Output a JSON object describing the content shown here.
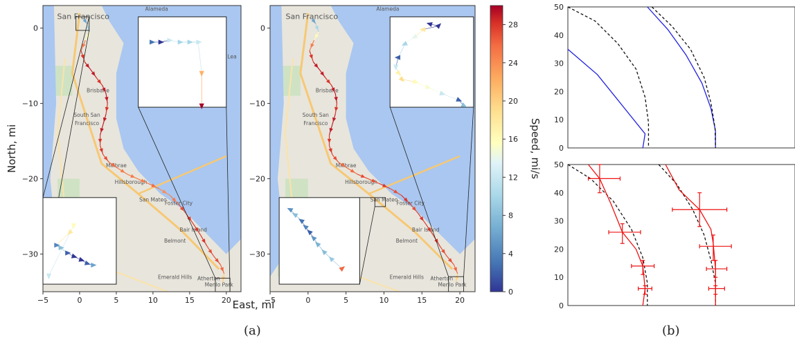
{
  "figure": {
    "caption_a": "(a)",
    "caption_b": "(b)"
  },
  "map_panels": {
    "xlabel": "East, mi",
    "ylabel": "North, mi",
    "xlim": [
      -5,
      22
    ],
    "ylim": [
      -35,
      3
    ],
    "xticks": [
      "−5",
      "0",
      "5",
      "10",
      "15",
      "20"
    ],
    "yticks": [
      "0",
      "−10",
      "−20",
      "−30"
    ],
    "place_labels": [
      {
        "text": "San Francisco",
        "x": 0.5,
        "y": 1.2,
        "big": true
      },
      {
        "text": "Alameda",
        "x": 10.5,
        "y": 2.3
      },
      {
        "text": "Brisbane",
        "x": 2.5,
        "y": -8.5
      },
      {
        "text": "South San",
        "x": 1.0,
        "y": -11.8
      },
      {
        "text": "Francisco",
        "x": 1.0,
        "y": -12.9
      },
      {
        "text": "Millbrae",
        "x": 5.0,
        "y": -18.5
      },
      {
        "text": "Hillsborough",
        "x": 7.0,
        "y": -20.7
      },
      {
        "text": "San Mateo",
        "x": 10.0,
        "y": -23.0
      },
      {
        "text": "Foster City",
        "x": 13.5,
        "y": -23.5
      },
      {
        "text": "Bair Island",
        "x": 15.5,
        "y": -27.0
      },
      {
        "text": "Belmont",
        "x": 13.0,
        "y": -28.5
      },
      {
        "text": "Emerald Hills",
        "x": 13.0,
        "y": -33.3
      },
      {
        "text": "Menlo Park",
        "x": 19.0,
        "y": -34.3
      },
      {
        "text": "Atherton",
        "x": 17.6,
        "y": -33.5
      },
      {
        "text": "San Lea",
        "x": 20.0,
        "y": -4.0
      }
    ],
    "route": [
      [
        0.5,
        1.3
      ],
      [
        1.0,
        0.6
      ],
      [
        1.4,
        -0.5
      ],
      [
        0.8,
        -1.6
      ],
      [
        0.2,
        -3.0
      ],
      [
        0.7,
        -4.5
      ],
      [
        1.5,
        -5.5
      ],
      [
        2.3,
        -6.6
      ],
      [
        3.1,
        -7.6
      ],
      [
        3.6,
        -8.7
      ],
      [
        3.8,
        -10.0
      ],
      [
        3.6,
        -11.4
      ],
      [
        3.2,
        -12.8
      ],
      [
        2.8,
        -14.2
      ],
      [
        2.8,
        -15.6
      ],
      [
        3.2,
        -16.8
      ],
      [
        4.0,
        -17.8
      ],
      [
        5.2,
        -18.6
      ],
      [
        6.5,
        -19.4
      ],
      [
        7.9,
        -20.0
      ],
      [
        9.3,
        -20.6
      ],
      [
        10.8,
        -21.3
      ],
      [
        12.3,
        -22.2
      ],
      [
        13.5,
        -23.4
      ],
      [
        14.5,
        -24.6
      ],
      [
        15.5,
        -26.0
      ],
      [
        16.5,
        -27.5
      ],
      [
        17.4,
        -29.0
      ],
      [
        18.3,
        -30.3
      ],
      [
        19.2,
        -31.4
      ],
      [
        19.7,
        -32.6
      ],
      [
        19.5,
        -33.8
      ]
    ],
    "route_speeds_left": [
      6,
      10,
      16,
      25,
      28,
      29,
      29,
      28,
      29,
      29,
      28,
      29,
      29,
      28,
      28,
      27,
      26,
      25,
      25,
      25,
      26,
      24,
      25,
      27,
      28,
      28,
      28,
      27,
      27,
      26,
      20,
      8
    ],
    "route_speeds_right": [
      6,
      10,
      16,
      25,
      28,
      29,
      29,
      28,
      29,
      29,
      28,
      29,
      29,
      28,
      28,
      27,
      26,
      26,
      27,
      27,
      28,
      27,
      28,
      27,
      28,
      28,
      28,
      27,
      27,
      26,
      20,
      8
    ],
    "left_insets": [
      {
        "box": {
          "x0": -5.0,
          "x1": 5.0,
          "y0": -34.0,
          "y1": -22.5
        },
        "zoom": {
          "x0": -0.5,
          "x1": 1.3,
          "y0": -0.3,
          "y1": 1.5
        },
        "connectors": "zoom-top-right-to-inset-top-left|zoom-bottom-right-to-inset-bottom-left",
        "arrows": [
          {
            "x": 0.15,
            "y": 0.72,
            "dx": 1,
            "dy": 0,
            "speed": 3
          },
          {
            "x": 0.25,
            "y": 0.72,
            "dx": 1,
            "dy": 0,
            "speed": 0
          },
          {
            "x": 0.35,
            "y": 0.74,
            "dx": 1,
            "dy": 0,
            "speed": 12
          },
          {
            "x": 0.47,
            "y": 0.72,
            "dx": 1,
            "dy": 0,
            "speed": 10
          },
          {
            "x": 0.58,
            "y": 0.72,
            "dx": 1,
            "dy": 0,
            "speed": 10
          },
          {
            "x": 0.68,
            "y": 0.72,
            "dx": 1,
            "dy": 0,
            "speed": 12
          },
          {
            "x": 0.72,
            "y": 0.38,
            "dx": 0,
            "dy": -1,
            "speed": 22
          },
          {
            "x": 0.72,
            "y": 0.02,
            "dx": 0,
            "dy": -1,
            "speed": 30
          }
        ]
      },
      {
        "box": {
          "x0": 8.0,
          "x1": 20.0,
          "y0": -10.5,
          "y1": 1.5
        },
        "zoom": {
          "x0": 18.5,
          "x1": 20.5,
          "y0": -35.0,
          "y1": -33.2
        },
        "connectors": "zoom-top-left-to-inset-top-left|zoom-bottom-left-to-inset-bottom-left"
      }
    ],
    "left_inset_bottom_arrows": [
      {
        "x": 0.08,
        "y": 0.1,
        "dx": 0,
        "dy": -1,
        "speed": 12
      },
      {
        "x": 0.42,
        "y": 0.68,
        "dx": 0,
        "dy": -1,
        "speed": 16
      },
      {
        "x": 0.37,
        "y": 0.6,
        "dx": -1,
        "dy": -1,
        "speed": 18
      },
      {
        "x": 0.18,
        "y": 0.45,
        "dx": 1,
        "dy": 0,
        "speed": 4
      },
      {
        "x": 0.24,
        "y": 0.42,
        "dx": 1,
        "dy": 0,
        "speed": 8
      },
      {
        "x": 0.33,
        "y": 0.36,
        "dx": 1,
        "dy": 0,
        "speed": 2
      },
      {
        "x": 0.42,
        "y": 0.32,
        "dx": 1,
        "dy": -0.3,
        "speed": 0
      },
      {
        "x": 0.52,
        "y": 0.28,
        "dx": 1,
        "dy": -0.3,
        "speed": 0
      },
      {
        "x": 0.6,
        "y": 0.24,
        "dx": 1,
        "dy": -0.3,
        "speed": 2
      },
      {
        "x": 0.68,
        "y": 0.22,
        "dx": 1,
        "dy": 0,
        "speed": 6
      }
    ],
    "right_insets": [
      {
        "box": {
          "x0": 10.8,
          "x1": 21.8,
          "y0": -10.5,
          "y1": 1.5
        },
        "zoom": {
          "x0": 18.5,
          "x1": 20.5,
          "y0": -35.0,
          "y1": -33.0
        },
        "arrows": [
          {
            "x": 0.48,
            "y": 0.92,
            "dx": -1,
            "dy": 0.3,
            "speed": 0
          },
          {
            "x": 0.58,
            "y": 0.9,
            "dx": 1,
            "dy": 1,
            "speed": 0
          },
          {
            "x": 0.4,
            "y": 0.86,
            "dx": -1,
            "dy": 0,
            "speed": 18
          },
          {
            "x": 0.3,
            "y": 0.78,
            "dx": -1,
            "dy": -0.5,
            "speed": 14
          },
          {
            "x": 0.18,
            "y": 0.7,
            "dx": -1,
            "dy": -0.5,
            "speed": 10
          },
          {
            "x": 0.1,
            "y": 0.55,
            "dx": -1,
            "dy": 0,
            "speed": 2
          },
          {
            "x": 0.07,
            "y": 0.45,
            "dx": 0,
            "dy": -1,
            "speed": 12
          },
          {
            "x": 0.1,
            "y": 0.38,
            "dx": 1,
            "dy": -1,
            "speed": 17
          },
          {
            "x": 0.14,
            "y": 0.31,
            "dx": 1,
            "dy": -1,
            "speed": 19
          },
          {
            "x": 0.3,
            "y": 0.28,
            "dx": 1,
            "dy": -0.3,
            "speed": 16
          },
          {
            "x": 0.45,
            "y": 0.22,
            "dx": 1,
            "dy": -0.3,
            "speed": 15
          },
          {
            "x": 0.62,
            "y": 0.15,
            "dx": 1,
            "dy": -0.3,
            "speed": 12
          },
          {
            "x": 0.82,
            "y": 0.08,
            "dx": 1,
            "dy": -0.4,
            "speed": 2
          },
          {
            "x": 0.88,
            "y": 0.02,
            "dx": 1,
            "dy": -0.5,
            "speed": 8
          }
        ]
      },
      {
        "box": {
          "x0": -3.8,
          "x1": 6.8,
          "y0": -34.0,
          "y1": -22.5
        },
        "zoom": {
          "x0": 8.8,
          "x1": 10.2,
          "y0": -23.7,
          "y1": -22.5
        },
        "arrows": [
          {
            "x": 0.14,
            "y": 0.86,
            "dx": -1,
            "dy": 0.5,
            "speed": 5
          },
          {
            "x": 0.2,
            "y": 0.8,
            "dx": -1,
            "dy": 0.6,
            "speed": 8
          },
          {
            "x": 0.28,
            "y": 0.73,
            "dx": -1,
            "dy": 0.7,
            "speed": 3
          },
          {
            "x": 0.33,
            "y": 0.66,
            "dx": -1,
            "dy": 0.8,
            "speed": 4
          },
          {
            "x": 0.38,
            "y": 0.6,
            "dx": -1,
            "dy": 0.9,
            "speed": 2
          },
          {
            "x": 0.43,
            "y": 0.53,
            "dx": -1,
            "dy": 1,
            "speed": 5
          },
          {
            "x": 0.48,
            "y": 0.46,
            "dx": -1,
            "dy": 1,
            "speed": 7
          },
          {
            "x": 0.56,
            "y": 0.37,
            "dx": -1,
            "dy": 1,
            "speed": 8
          },
          {
            "x": 0.65,
            "y": 0.29,
            "dx": -1,
            "dy": 1,
            "speed": 9
          },
          {
            "x": 0.78,
            "y": 0.18,
            "dx": 1,
            "dy": 0.8,
            "speed": 26
          }
        ]
      }
    ]
  },
  "colorbar": {
    "label": "Speed, mi/s",
    "min": 0,
    "max": 30,
    "ticks": [
      "0",
      "4",
      "8",
      "12",
      "16",
      "20",
      "24",
      "28"
    ],
    "tick_values": [
      0,
      4,
      8,
      12,
      16,
      20,
      24,
      28
    ]
  },
  "chart_data": [
    {
      "type": "line",
      "panel": "b-top",
      "xlim": [
        0,
        1
      ],
      "ylim": [
        0,
        50
      ],
      "yticks": [
        "0",
        "10",
        "20",
        "30",
        "40",
        "50"
      ],
      "series": [
        {
          "style": "solid-blue",
          "points": [
            [
              0.0,
              35
            ],
            [
              0.13,
              26
            ],
            [
              0.25,
              14
            ],
            [
              0.34,
              5
            ],
            [
              0.33,
              0
            ]
          ]
        },
        {
          "style": "dashed-black",
          "points": [
            [
              0.0,
              50
            ],
            [
              0.12,
              45
            ],
            [
              0.22,
              37
            ],
            [
              0.3,
              28
            ],
            [
              0.34,
              18
            ],
            [
              0.355,
              9
            ],
            [
              0.355,
              0
            ]
          ]
        },
        {
          "style": "solid-blue",
          "points": [
            [
              0.35,
              50
            ],
            [
              0.44,
              42
            ],
            [
              0.52,
              33
            ],
            [
              0.59,
              23
            ],
            [
              0.63,
              14
            ],
            [
              0.65,
              6
            ],
            [
              0.65,
              0
            ]
          ]
        },
        {
          "style": "dashed-black",
          "points": [
            [
              0.37,
              50
            ],
            [
              0.46,
              43
            ],
            [
              0.54,
              35
            ],
            [
              0.6,
              25
            ],
            [
              0.63,
              16
            ],
            [
              0.648,
              7
            ],
            [
              0.65,
              0
            ]
          ]
        }
      ]
    },
    {
      "type": "line",
      "panel": "b-bottom",
      "xlim": [
        0,
        1
      ],
      "ylim": [
        0,
        50
      ],
      "yticks": [
        "0",
        "10",
        "20",
        "30",
        "40",
        "50"
      ],
      "series": [
        {
          "style": "dashed-black",
          "points": [
            [
              0.0,
              50
            ],
            [
              0.1,
              45
            ],
            [
              0.2,
              37
            ],
            [
              0.28,
              27
            ],
            [
              0.33,
              17
            ],
            [
              0.35,
              8
            ],
            [
              0.35,
              0
            ]
          ]
        },
        {
          "style": "solid-red",
          "points": [
            [
              0.09,
              50
            ],
            [
              0.14,
              45
            ],
            [
              0.19,
              36
            ],
            [
              0.24,
              26
            ],
            [
              0.3,
              20
            ],
            [
              0.33,
              14
            ],
            [
              0.34,
              6
            ],
            [
              0.33,
              0
            ]
          ]
        },
        {
          "style": "dashed-black",
          "points": [
            [
              0.4,
              50
            ],
            [
              0.48,
              43
            ],
            [
              0.55,
              34
            ],
            [
              0.6,
              25
            ],
            [
              0.63,
              16
            ],
            [
              0.65,
              8
            ],
            [
              0.65,
              0
            ]
          ]
        },
        {
          "style": "solid-red",
          "points": [
            [
              0.43,
              50
            ],
            [
              0.49,
              41
            ],
            [
              0.58,
              34
            ],
            [
              0.63,
              27
            ],
            [
              0.64,
              22
            ],
            [
              0.65,
              13
            ],
            [
              0.65,
              6
            ],
            [
              0.65,
              0
            ]
          ]
        }
      ],
      "error_bars": [
        {
          "x": 0.14,
          "y": 45,
          "xerr": [
            0.09,
            0.23
          ],
          "yerr": [
            40,
            50
          ]
        },
        {
          "x": 0.24,
          "y": 26,
          "xerr": [
            0.18,
            0.32
          ],
          "yerr": [
            22,
            29
          ]
        },
        {
          "x": 0.33,
          "y": 14,
          "xerr": [
            0.28,
            0.38
          ],
          "yerr": [
            11,
            16
          ]
        },
        {
          "x": 0.34,
          "y": 6,
          "xerr": [
            0.31,
            0.37
          ],
          "yerr": [
            4,
            7
          ]
        },
        {
          "x": 0.58,
          "y": 34,
          "xerr": [
            0.46,
            0.7
          ],
          "yerr": [
            28,
            40
          ]
        },
        {
          "x": 0.64,
          "y": 21,
          "xerr": [
            0.58,
            0.72
          ],
          "yerr": [
            16,
            25
          ]
        },
        {
          "x": 0.65,
          "y": 13,
          "xerr": [
            0.61,
            0.7
          ],
          "yerr": [
            10,
            16
          ]
        },
        {
          "x": 0.65,
          "y": 6,
          "xerr": [
            0.62,
            0.69
          ],
          "yerr": [
            4,
            7
          ]
        }
      ]
    }
  ]
}
